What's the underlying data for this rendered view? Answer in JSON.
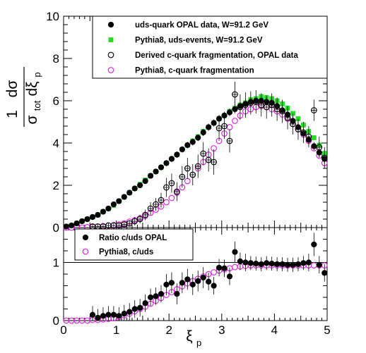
{
  "chart_data": [
    {
      "type": "scatter",
      "panel": "top",
      "ylabel": {
        "numerator": "1",
        "numerator2": "dσ",
        "denominator_main": "σ",
        "denominator_sub1": "tot",
        "denominator_mid": "dξ",
        "denominator_sub2": "p"
      },
      "xlim": [
        0,
        5
      ],
      "ylim": [
        0,
        10
      ],
      "yticks": [
        0,
        2,
        4,
        6,
        8,
        10
      ],
      "legend": {
        "position": "top",
        "entries": [
          {
            "label": "uds-quark OPAL data, W=91.2 GeV",
            "marker": "filled-circle",
            "color": "#000000"
          },
          {
            "label": "Pythia8, uds-events, W=91.2 GeV",
            "marker": "filled-square",
            "color": "#22dd22"
          },
          {
            "label": "Derived c-quark fragmentation, OPAL data",
            "marker": "open-circle",
            "color": "#000000"
          },
          {
            "label": "Pythia8, c-quark fragmentation",
            "marker": "open-circle",
            "color": "#dd22dd"
          }
        ]
      },
      "series": [
        {
          "name": "uds-quark OPAL data, W=91.2 GeV",
          "marker": "filled-circle",
          "color": "#000000",
          "x": [
            0.05,
            0.15,
            0.25,
            0.35,
            0.45,
            0.55,
            0.65,
            0.75,
            0.85,
            0.95,
            1.05,
            1.15,
            1.25,
            1.35,
            1.45,
            1.55,
            1.65,
            1.75,
            1.85,
            1.95,
            2.05,
            2.15,
            2.25,
            2.35,
            2.45,
            2.55,
            2.65,
            2.75,
            2.85,
            2.95,
            3.05,
            3.15,
            3.25,
            3.35,
            3.45,
            3.55,
            3.65,
            3.75,
            3.85,
            3.95,
            4.05,
            4.15,
            4.25,
            4.35,
            4.45,
            4.55,
            4.65,
            4.75,
            4.85,
            4.95
          ],
          "y": [
            0.05,
            0.1,
            0.2,
            0.3,
            0.4,
            0.5,
            0.6,
            0.75,
            0.9,
            1.1,
            1.25,
            1.45,
            1.65,
            1.85,
            2.0,
            2.2,
            2.45,
            2.65,
            2.85,
            3.05,
            3.25,
            3.45,
            3.7,
            3.9,
            4.05,
            4.25,
            4.5,
            4.75,
            4.95,
            5.15,
            5.3,
            5.45,
            5.6,
            5.75,
            5.85,
            5.95,
            6.0,
            6.0,
            5.95,
            5.9,
            5.75,
            5.55,
            5.35,
            5.05,
            4.75,
            4.45,
            4.15,
            3.85,
            3.55,
            3.25
          ],
          "yerr": [
            0.05,
            0.05,
            0.05,
            0.05,
            0.05,
            0.06,
            0.06,
            0.07,
            0.08,
            0.08,
            0.09,
            0.1,
            0.1,
            0.11,
            0.11,
            0.12,
            0.12,
            0.13,
            0.13,
            0.14,
            0.14,
            0.15,
            0.15,
            0.15,
            0.16,
            0.16,
            0.17,
            0.17,
            0.17,
            0.18,
            0.18,
            0.18,
            0.19,
            0.19,
            0.19,
            0.19,
            0.2,
            0.2,
            0.2,
            0.2,
            0.2,
            0.2,
            0.2,
            0.2,
            0.2,
            0.2,
            0.2,
            0.2,
            0.2,
            0.2
          ]
        },
        {
          "name": "Pythia8, uds-events, W=91.2 GeV",
          "marker": "filled-square",
          "color": "#22dd22",
          "x": [
            0.05,
            0.15,
            0.25,
            0.35,
            0.45,
            0.55,
            0.65,
            0.75,
            0.85,
            0.95,
            1.05,
            1.15,
            1.25,
            1.35,
            1.45,
            1.55,
            1.65,
            1.75,
            1.85,
            1.95,
            2.05,
            2.15,
            2.25,
            2.35,
            2.45,
            2.55,
            2.65,
            2.75,
            2.85,
            2.95,
            3.05,
            3.15,
            3.25,
            3.35,
            3.45,
            3.55,
            3.65,
            3.75,
            3.85,
            3.95,
            4.05,
            4.15,
            4.25,
            4.35,
            4.45,
            4.55,
            4.65,
            4.75,
            4.85,
            4.95
          ],
          "y": [
            0.05,
            0.1,
            0.2,
            0.3,
            0.4,
            0.5,
            0.6,
            0.75,
            0.9,
            1.05,
            1.25,
            1.45,
            1.65,
            1.85,
            2.05,
            2.25,
            2.45,
            2.65,
            2.85,
            3.05,
            3.25,
            3.45,
            3.7,
            3.9,
            4.1,
            4.3,
            4.55,
            4.75,
            4.95,
            5.15,
            5.3,
            5.5,
            5.65,
            5.8,
            5.9,
            6.05,
            6.1,
            6.2,
            6.15,
            6.1,
            6.0,
            5.85,
            5.65,
            5.4,
            5.15,
            4.85,
            4.55,
            4.25,
            3.9,
            3.5
          ]
        },
        {
          "name": "Derived c-quark fragmentation, OPAL data",
          "marker": "open-circle",
          "color": "#000000",
          "x": [
            0.55,
            0.65,
            0.75,
            0.85,
            0.95,
            1.05,
            1.15,
            1.25,
            1.35,
            1.45,
            1.55,
            1.65,
            1.75,
            1.85,
            1.95,
            2.05,
            2.15,
            2.25,
            2.35,
            2.45,
            2.55,
            2.65,
            2.75,
            2.85,
            2.95,
            3.05,
            3.15,
            3.25,
            3.35,
            3.45,
            3.55,
            3.65,
            3.75,
            3.85,
            3.95,
            4.05,
            4.15,
            4.25,
            4.35,
            4.45,
            4.55,
            4.65,
            4.75,
            4.85,
            4.95
          ],
          "y": [
            0.05,
            0.05,
            0.05,
            0.1,
            0.1,
            0.1,
            0.15,
            0.2,
            0.3,
            0.4,
            0.6,
            0.9,
            1.1,
            1.3,
            1.9,
            2.1,
            1.7,
            2.4,
            2.8,
            2.5,
            2.9,
            3.5,
            3.2,
            3.1,
            4.7,
            4.8,
            4.1,
            6.3,
            5.7,
            5.8,
            5.9,
            5.95,
            5.8,
            5.7,
            5.8,
            5.6,
            5.5,
            5.2,
            4.9,
            4.65,
            4.5,
            4.3,
            5.55,
            3.8,
            3.3
          ],
          "yerr": [
            0.1,
            0.1,
            0.1,
            0.1,
            0.1,
            0.1,
            0.15,
            0.15,
            0.2,
            0.2,
            0.25,
            0.3,
            0.3,
            0.35,
            0.45,
            0.45,
            0.45,
            0.5,
            0.5,
            0.5,
            0.55,
            0.55,
            0.55,
            0.6,
            0.6,
            0.6,
            0.55,
            0.6,
            0.6,
            0.6,
            0.55,
            0.55,
            0.55,
            0.55,
            0.55,
            0.55,
            0.55,
            0.55,
            0.5,
            0.5,
            0.5,
            0.5,
            0.5,
            0.5,
            0.5
          ]
        },
        {
          "name": "Pythia8, c-quark fragmentation",
          "marker": "open-circle",
          "color": "#dd22dd",
          "x": [
            0.05,
            0.15,
            0.25,
            0.35,
            0.45,
            0.55,
            0.65,
            0.75,
            0.85,
            0.95,
            1.05,
            1.15,
            1.25,
            1.35,
            1.45,
            1.55,
            1.65,
            1.75,
            1.85,
            1.95,
            2.05,
            2.15,
            2.25,
            2.35,
            2.45,
            2.55,
            2.65,
            2.75,
            2.85,
            2.95,
            3.05,
            3.15,
            3.25,
            3.35,
            3.45,
            3.55,
            3.65,
            3.75,
            3.85,
            3.95,
            4.05,
            4.15,
            4.25,
            4.35,
            4.45,
            4.55,
            4.65,
            4.75,
            4.85,
            4.95
          ],
          "y": [
            0.0,
            0.0,
            0.0,
            0.0,
            0.02,
            0.03,
            0.05,
            0.07,
            0.1,
            0.12,
            0.15,
            0.2,
            0.28,
            0.35,
            0.45,
            0.55,
            0.7,
            0.85,
            1.0,
            1.2,
            1.4,
            1.65,
            1.9,
            2.2,
            2.5,
            2.8,
            3.1,
            3.45,
            3.75,
            4.1,
            4.45,
            4.75,
            5.05,
            5.3,
            5.5,
            5.6,
            5.7,
            5.75,
            5.7,
            5.6,
            5.5,
            5.35,
            5.15,
            4.9,
            4.65,
            4.4,
            4.1,
            3.75,
            3.4,
            3.05
          ]
        }
      ]
    },
    {
      "type": "scatter",
      "panel": "bottom",
      "xlabel": {
        "main": "ξ",
        "sub": "p"
      },
      "xlim": [
        0,
        5
      ],
      "ylim": [
        0,
        1.6
      ],
      "xticks": [
        0,
        1,
        2,
        3,
        4,
        5
      ],
      "yticks": [
        0,
        1
      ],
      "reference_line": 1,
      "legend": {
        "position": "top-left",
        "entries": [
          {
            "label": "Ratio c/uds OPAL",
            "marker": "filled-circle",
            "color": "#000000"
          },
          {
            "label": "Pythia8, c/uds",
            "marker": "open-circle",
            "color": "#dd22dd"
          }
        ]
      },
      "series": [
        {
          "name": "Ratio c/uds OPAL",
          "marker": "filled-circle",
          "color": "#000000",
          "x": [
            0.55,
            0.65,
            0.75,
            0.85,
            0.95,
            1.05,
            1.15,
            1.25,
            1.35,
            1.45,
            1.55,
            1.65,
            1.75,
            1.85,
            1.95,
            2.05,
            2.15,
            2.25,
            2.35,
            2.45,
            2.55,
            2.65,
            2.75,
            2.85,
            2.95,
            3.05,
            3.15,
            3.25,
            3.35,
            3.45,
            3.55,
            3.65,
            3.75,
            3.85,
            3.95,
            4.05,
            4.15,
            4.25,
            4.35,
            4.45,
            4.55,
            4.65,
            4.75,
            4.85,
            4.95
          ],
          "y": [
            0.1,
            0.05,
            0.08,
            0.1,
            0.1,
            0.08,
            0.12,
            0.15,
            0.2,
            0.22,
            0.3,
            0.4,
            0.42,
            0.46,
            0.62,
            0.65,
            0.46,
            0.65,
            0.71,
            0.62,
            0.68,
            0.74,
            0.67,
            0.6,
            0.91,
            0.9,
            0.76,
            1.18,
            1.02,
            1.0,
            0.99,
            0.98,
            0.97,
            0.99,
            0.98,
            0.97,
            0.97,
            0.96,
            0.96,
            0.97,
            0.99,
            1.0,
            1.31,
            0.96,
            0.82
          ],
          "yerr": [
            0.15,
            0.15,
            0.15,
            0.15,
            0.15,
            0.15,
            0.15,
            0.15,
            0.15,
            0.15,
            0.15,
            0.15,
            0.15,
            0.15,
            0.18,
            0.18,
            0.18,
            0.18,
            0.18,
            0.18,
            0.18,
            0.18,
            0.15,
            0.15,
            0.15,
            0.15,
            0.15,
            0.18,
            0.15,
            0.15,
            0.12,
            0.12,
            0.12,
            0.12,
            0.12,
            0.12,
            0.12,
            0.12,
            0.12,
            0.12,
            0.12,
            0.15,
            0.2,
            0.15,
            0.15
          ]
        },
        {
          "name": "Pythia8, c/uds",
          "marker": "open-circle",
          "color": "#dd22dd",
          "x": [
            0.05,
            0.15,
            0.25,
            0.35,
            0.45,
            0.55,
            0.65,
            0.75,
            0.85,
            0.95,
            1.05,
            1.15,
            1.25,
            1.35,
            1.45,
            1.55,
            1.65,
            1.75,
            1.85,
            1.95,
            2.05,
            2.15,
            2.25,
            2.35,
            2.45,
            2.55,
            2.65,
            2.75,
            2.85,
            2.95,
            3.05,
            3.15,
            3.25,
            3.35,
            3.45,
            3.55,
            3.65,
            3.75,
            3.85,
            3.95,
            4.05,
            4.15,
            4.25,
            4.35,
            4.45,
            4.55,
            4.65,
            4.75,
            4.85,
            4.95
          ],
          "y": [
            0.0,
            0.0,
            0.0,
            0.0,
            0.0,
            0.01,
            0.01,
            0.02,
            0.03,
            0.04,
            0.06,
            0.09,
            0.12,
            0.16,
            0.2,
            0.24,
            0.29,
            0.34,
            0.39,
            0.44,
            0.49,
            0.54,
            0.59,
            0.64,
            0.68,
            0.72,
            0.76,
            0.8,
            0.83,
            0.86,
            0.88,
            0.9,
            0.92,
            0.93,
            0.94,
            0.95,
            0.95,
            0.95,
            0.95,
            0.95,
            0.95,
            0.95,
            0.95,
            0.95,
            0.95,
            0.95,
            0.95,
            0.95,
            0.95,
            0.95
          ]
        }
      ]
    }
  ]
}
